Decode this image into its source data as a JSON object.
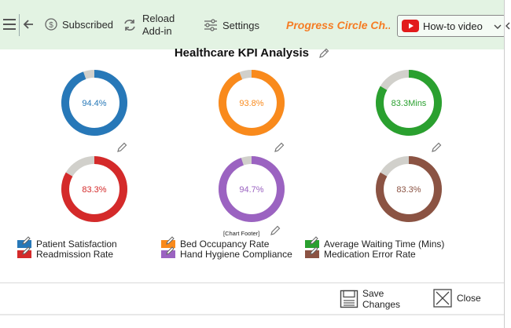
{
  "toolbar": {
    "subscribed_label": "Subscribed",
    "reload_label_1": "Reload",
    "reload_label_2": "Add-in",
    "settings_label": "Settings",
    "progress_title": "Progress Circle Ch...",
    "howto_label": "How-to video"
  },
  "chart": {
    "title": "Healthcare KPI Analysis",
    "footer": "[Chart Footer]"
  },
  "chart_data": {
    "type": "donut",
    "title": "Healthcare KPI Analysis",
    "series": [
      {
        "name": "Patient Satisfaction",
        "value": 94.4,
        "label": "94.4%",
        "color": "#2778b8"
      },
      {
        "name": "Bed Occupancy Rate",
        "value": 93.8,
        "label": "93.8%",
        "color": "#f98a1c"
      },
      {
        "name": "Average Waiting Time (Mins)",
        "value": 83.3,
        "label": "83.3Mins",
        "color": "#2aa02f"
      },
      {
        "name": "Readmission Rate",
        "value": 83.3,
        "label": "83.3%",
        "color": "#d42a2a"
      },
      {
        "name": "Hand Hygiene Compliance",
        "value": 94.7,
        "label": "94.7%",
        "color": "#9b63c1"
      },
      {
        "name": "Medication Error Rate",
        "value": 83.3,
        "label": "83.3%",
        "color": "#8b5343"
      }
    ],
    "remainder_color": "#d1d0cb"
  },
  "legend": {
    "items": [
      {
        "label": "Patient Satisfaction",
        "color": "#2778b8"
      },
      {
        "label": "Bed Occupancy Rate",
        "color": "#f98a1c"
      },
      {
        "label": "Average Waiting Time (Mins)",
        "color": "#2aa02f"
      },
      {
        "label": "Readmission Rate",
        "color": "#d42a2a"
      },
      {
        "label": "Hand Hygiene Compliance",
        "color": "#9b63c1"
      },
      {
        "label": "Medication Error Rate",
        "color": "#8b5343"
      }
    ]
  },
  "buttons": {
    "save_label_1": "Save",
    "save_label_2": "Changes",
    "close_label": "Close"
  }
}
